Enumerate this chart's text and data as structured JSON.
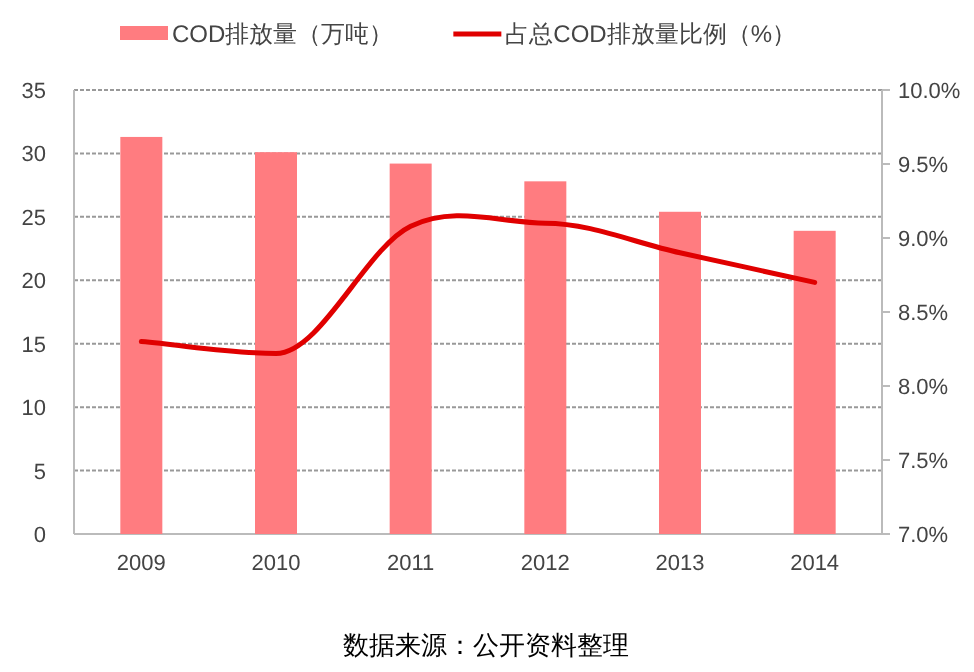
{
  "chart_data": {
    "type": "bar",
    "categories": [
      "2009",
      "2010",
      "2011",
      "2012",
      "2013",
      "2014"
    ],
    "series": [
      {
        "name": "COD排放量（万吨）",
        "color": "#ff7c80",
        "values": [
          31.3,
          30.1,
          29.2,
          27.8,
          25.4,
          23.9
        ]
      },
      {
        "name": "占总COD排放量比例（%）",
        "type": "line",
        "axis": "y2",
        "color": "#e00000",
        "values": [
          8.3,
          8.22,
          9.08,
          9.1,
          8.9,
          8.7
        ]
      }
    ],
    "ylim": [
      0,
      35
    ],
    "yticks": [
      0,
      5,
      10,
      15,
      20,
      25,
      30,
      35
    ],
    "y2lim": [
      7,
      10
    ],
    "y2ticks": [
      {
        "value": 7,
        "label": "7.0%"
      },
      {
        "value": 7.5,
        "label": "7.5%"
      },
      {
        "value": 8,
        "label": "8.0%"
      },
      {
        "value": 8.5,
        "label": "8.5%"
      },
      {
        "value": 9,
        "label": "9.0%"
      },
      {
        "value": 9.5,
        "label": "9.5%"
      },
      {
        "value": 10,
        "label": "10.0%"
      }
    ],
    "grid": "y",
    "legend": "top",
    "marker": "none",
    "line_style": "solid",
    "annotations": [
      "数据来源：公开资料整理"
    ]
  }
}
